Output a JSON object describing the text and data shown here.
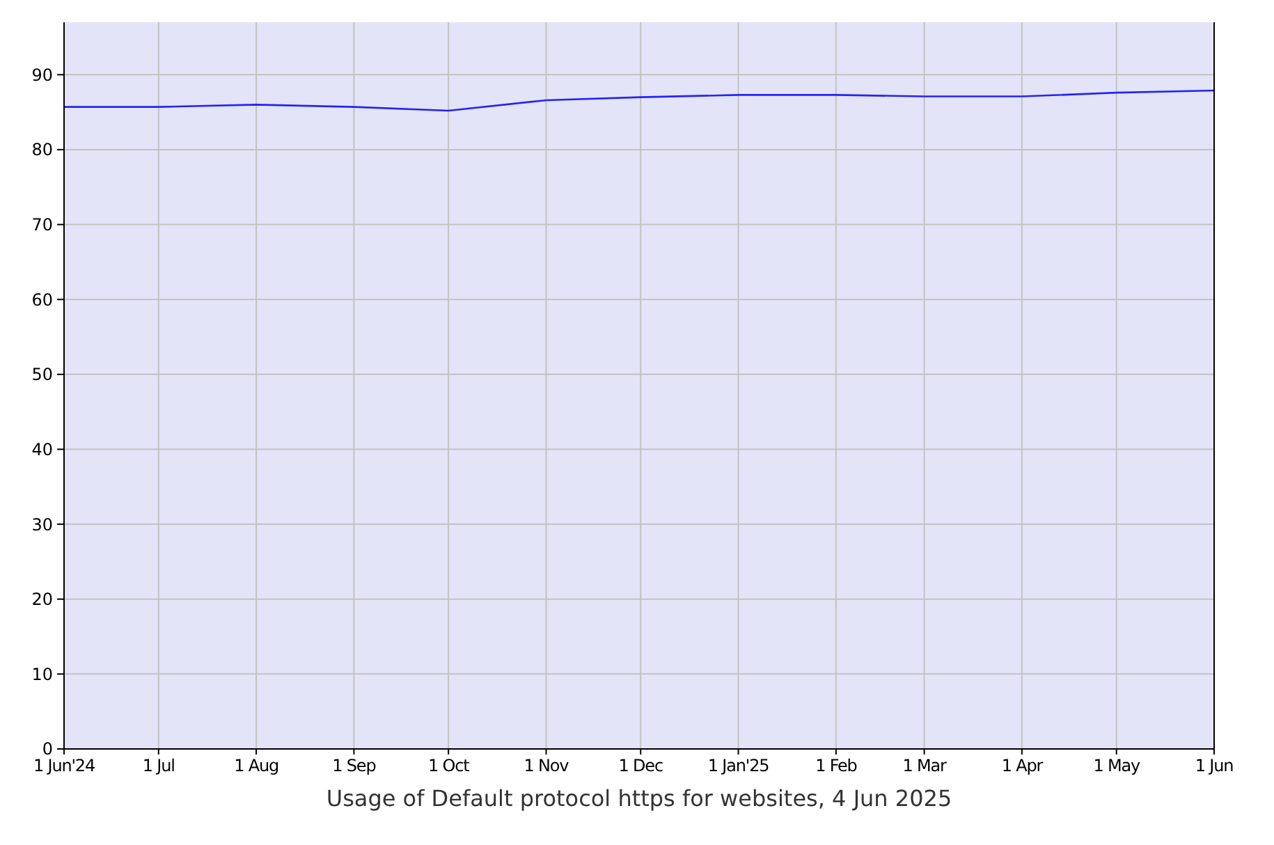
{
  "chart_data": {
    "type": "line",
    "annotations": [
      "Usage of Default protocol https for websites, 4 Jun 2025"
    ],
    "x": [
      "2024-06-01",
      "2024-07-01",
      "2024-08-01",
      "2024-09-01",
      "2024-10-01",
      "2024-11-01",
      "2024-12-01",
      "2025-01-01",
      "2025-02-01",
      "2025-03-01",
      "2025-04-01",
      "2025-05-01",
      "2025-06-01"
    ],
    "series": [
      {
        "color": "#2323ff",
        "values": [
          85.7,
          85.7,
          86.0,
          85.7,
          85.2,
          86.6,
          87.0,
          87.3,
          87.3,
          87.1,
          87.1,
          87.6,
          87.9
        ]
      }
    ],
    "xlim": [
      "2024-06-01",
      "2025-06-01"
    ],
    "xticks": [
      {
        "value": "2024-06-01",
        "label": "1 Jun'24"
      },
      {
        "value": "2024-07-01",
        "label": "1 Jul"
      },
      {
        "value": "2024-08-01",
        "label": "1 Aug"
      },
      {
        "value": "2024-09-01",
        "label": "1 Sep"
      },
      {
        "value": "2024-10-01",
        "label": "1 Oct"
      },
      {
        "value": "2024-11-01",
        "label": "1 Nov"
      },
      {
        "value": "2024-12-01",
        "label": "1 Dec"
      },
      {
        "value": "2025-01-01",
        "label": "1 Jan'25"
      },
      {
        "value": "2025-02-01",
        "label": "1 Feb"
      },
      {
        "value": "2025-03-01",
        "label": "1 Mar"
      },
      {
        "value": "2025-04-01",
        "label": "1 Apr"
      },
      {
        "value": "2025-05-01",
        "label": "1 May"
      },
      {
        "value": "2025-06-01",
        "label": "1 Jun"
      }
    ],
    "ylim": [
      0,
      97
    ],
    "yticks": [
      0,
      10,
      20,
      30,
      40,
      50,
      60,
      70,
      80,
      90
    ],
    "grid": true,
    "marker": "none",
    "line_style": "solid"
  }
}
